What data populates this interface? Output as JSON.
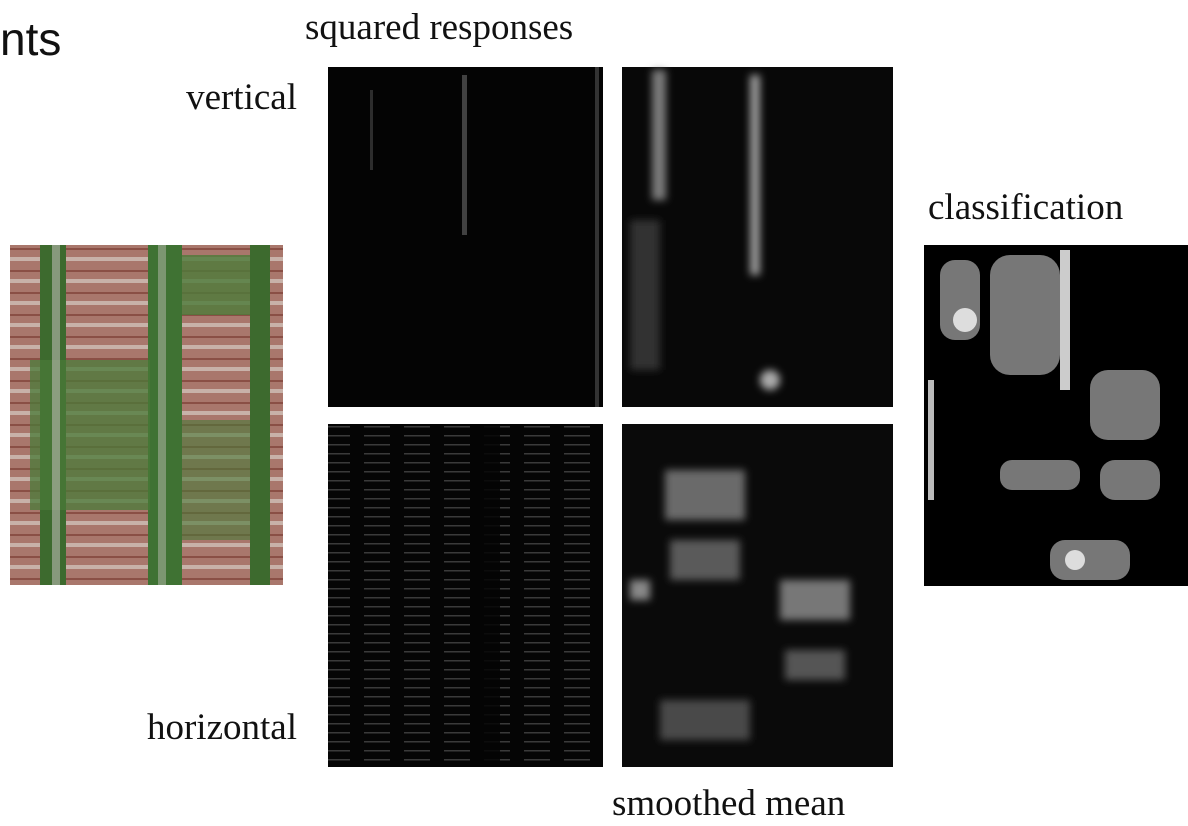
{
  "header": {
    "title": "nts"
  },
  "labels": {
    "column_top": "squared responses",
    "row_top": "vertical",
    "row_bottom": "horizontal",
    "column_bottom": "smoothed mean",
    "result": "classification"
  }
}
